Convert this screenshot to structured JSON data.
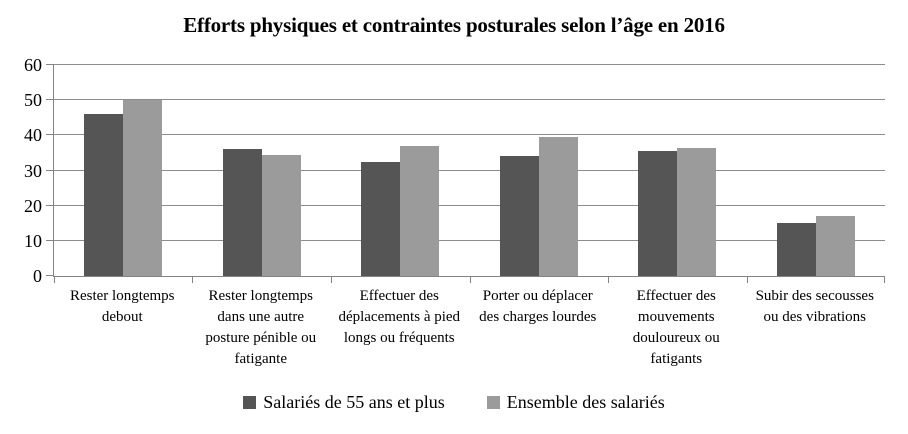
{
  "chart_data": {
    "type": "bar",
    "title": "Efforts physiques et contraintes posturales selon l’âge en 2016",
    "categories": [
      "Rester longtemps debout",
      "Rester longtemps dans une autre posture pénible ou fatigante",
      "Effectuer des déplacements à pied longs ou fréquents",
      "Porter ou déplacer des charges lourdes",
      "Effectuer des mouvements douloureux ou fatigants",
      "Subir des secousses ou des vibrations"
    ],
    "series": [
      {
        "name": "Salariés de 55 ans et plus",
        "color": "#555555",
        "values": [
          46,
          36,
          32.5,
          34,
          35.5,
          15
        ]
      },
      {
        "name": "Ensemble des salariés",
        "color": "#9b9b9b",
        "values": [
          50,
          34.5,
          37,
          39.5,
          36.5,
          17
        ]
      }
    ],
    "xlabel": "",
    "ylabel": "",
    "ylim": [
      0,
      60
    ],
    "yticks": [
      0,
      10,
      20,
      30,
      40,
      50,
      60
    ],
    "grid": true,
    "legend_position": "bottom"
  }
}
